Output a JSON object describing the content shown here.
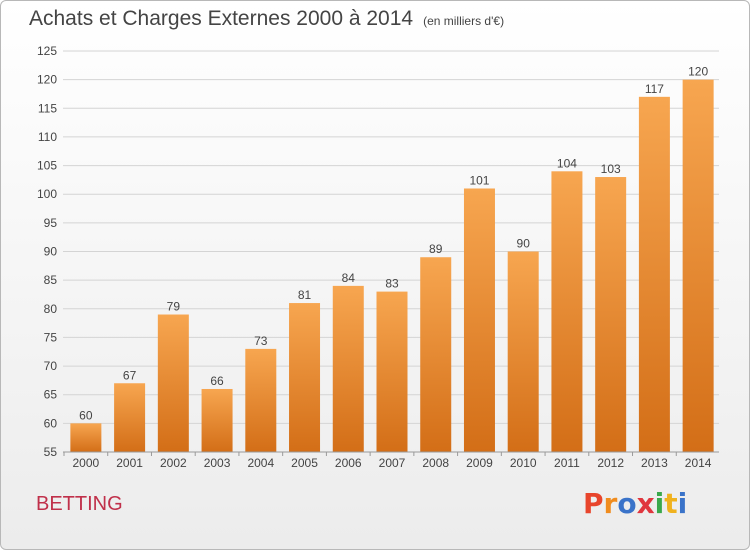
{
  "header": {
    "title": "Achats et Charges Externes 2000 à 2014",
    "subtitle": "(en milliers d'€)"
  },
  "footer": {
    "commune": "BETTING",
    "logo": "Proxiti"
  },
  "colors": {
    "bar_top": "#f7a650",
    "bar_bottom": "#d36e17",
    "grid": "#d4d4d4",
    "text": "#444444",
    "commune": "#c0304a",
    "logo_letters": [
      "#e8452c",
      "#f08c1e",
      "#3a73c9",
      "#e0363e",
      "#3aa84b",
      "#f0b21e",
      "#3a73c9"
    ]
  },
  "chart_data": {
    "type": "bar",
    "title": "Achats et Charges Externes 2000 à 2014",
    "subtitle": "(en milliers d'€)",
    "xlabel": "",
    "ylabel": "",
    "categories": [
      "2000",
      "2001",
      "2002",
      "2003",
      "2004",
      "2005",
      "2006",
      "2007",
      "2008",
      "2009",
      "2010",
      "2011",
      "2012",
      "2013",
      "2014"
    ],
    "values": [
      60,
      67,
      79,
      66,
      73,
      81,
      84,
      83,
      89,
      101,
      90,
      104,
      103,
      117,
      120
    ],
    "ylim": [
      55,
      125
    ],
    "yticks": [
      55,
      60,
      65,
      70,
      75,
      80,
      85,
      90,
      95,
      100,
      105,
      110,
      115,
      120,
      125
    ],
    "grid": true,
    "legend": "none"
  }
}
